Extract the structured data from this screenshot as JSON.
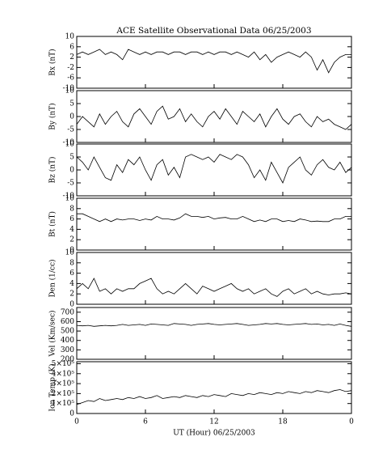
{
  "chart_data": [
    {
      "type": "line",
      "title": "ACE Satellite Observational Data   06/25/2003",
      "ylabel": "Bx (nT)",
      "x": [
        0,
        0.5,
        1,
        1.5,
        2,
        2.5,
        3,
        3.5,
        4,
        4.5,
        5,
        5.5,
        6,
        6.5,
        7,
        7.5,
        8,
        8.5,
        9,
        9.5,
        10,
        10.5,
        11,
        11.5,
        12,
        12.5,
        13,
        13.5,
        14,
        14.5,
        15,
        15.5,
        16,
        16.5,
        17,
        17.5,
        18,
        18.5,
        19,
        19.5,
        20,
        20.5,
        21,
        21.5,
        22,
        22.5,
        23,
        23.5,
        24
      ],
      "values": [
        3,
        4,
        3,
        4,
        5,
        3,
        4,
        3,
        1,
        5,
        4,
        3,
        4,
        3,
        4,
        4,
        3,
        4,
        4,
        3,
        4,
        4,
        3,
        4,
        3,
        4,
        4,
        3,
        4,
        3,
        2,
        4,
        1,
        3,
        0,
        2,
        3,
        4,
        3,
        2,
        4,
        2,
        -3,
        1,
        -4,
        0,
        2,
        3,
        3
      ],
      "xlim": [
        0,
        24
      ],
      "ylim": [
        -10,
        10
      ],
      "yticks": [
        -10,
        -6,
        -2,
        2,
        6,
        10
      ]
    },
    {
      "type": "line",
      "ylabel": "By (nT)",
      "x": [
        0,
        0.5,
        1,
        1.5,
        2,
        2.5,
        3,
        3.5,
        4,
        4.5,
        5,
        5.5,
        6,
        6.5,
        7,
        7.5,
        8,
        8.5,
        9,
        9.5,
        10,
        10.5,
        11,
        11.5,
        12,
        12.5,
        13,
        13.5,
        14,
        14.5,
        15,
        15.5,
        16,
        16.5,
        17,
        17.5,
        18,
        18.5,
        19,
        19.5,
        20,
        20.5,
        21,
        21.5,
        22,
        22.5,
        23,
        23.5,
        24
      ],
      "values": [
        -3,
        0,
        -2,
        -4,
        1,
        -3,
        0,
        2,
        -2,
        -4,
        1,
        3,
        0,
        -3,
        2,
        4,
        -1,
        0,
        3,
        -2,
        1,
        -2,
        -4,
        0,
        2,
        -1,
        3,
        0,
        -3,
        2,
        0,
        -2,
        1,
        -4,
        0,
        3,
        -1,
        -3,
        0,
        1,
        -2,
        -4,
        0,
        -2,
        -1,
        -3,
        -4,
        -5,
        -3
      ],
      "xlim": [
        0,
        24
      ],
      "ylim": [
        -10,
        10
      ],
      "yticks": [
        -10,
        -5,
        0,
        5,
        10
      ]
    },
    {
      "type": "line",
      "ylabel": "Bz (nT)",
      "x": [
        0,
        0.5,
        1,
        1.5,
        2,
        2.5,
        3,
        3.5,
        4,
        4.5,
        5,
        5.5,
        6,
        6.5,
        7,
        7.5,
        8,
        8.5,
        9,
        9.5,
        10,
        10.5,
        11,
        11.5,
        12,
        12.5,
        13,
        13.5,
        14,
        14.5,
        15,
        15.5,
        16,
        16.5,
        17,
        17.5,
        18,
        18.5,
        19,
        19.5,
        20,
        20.5,
        21,
        21.5,
        22,
        22.5,
        23,
        23.5,
        24
      ],
      "values": [
        5,
        3,
        0,
        5,
        1,
        -3,
        -4,
        2,
        -1,
        4,
        2,
        5,
        0,
        -4,
        2,
        4,
        -2,
        1,
        -3,
        5,
        6,
        5,
        4,
        5,
        3,
        6,
        5,
        4,
        6,
        5,
        2,
        -3,
        0,
        -4,
        3,
        -1,
        -5,
        1,
        3,
        5,
        0,
        -2,
        2,
        4,
        1,
        0,
        3,
        -1,
        1
      ],
      "xlim": [
        0,
        24
      ],
      "ylim": [
        -10,
        10
      ],
      "yticks": [
        -10,
        -5,
        0,
        5,
        10
      ]
    },
    {
      "type": "line",
      "ylabel": "Bt (nT)",
      "x": [
        0,
        0.5,
        1,
        1.5,
        2,
        2.5,
        3,
        3.5,
        4,
        4.5,
        5,
        5.5,
        6,
        6.5,
        7,
        7.5,
        8,
        8.5,
        9,
        9.5,
        10,
        10.5,
        11,
        11.5,
        12,
        12.5,
        13,
        13.5,
        14,
        14.5,
        15,
        15.5,
        16,
        16.5,
        17,
        17.5,
        18,
        18.5,
        19,
        19.5,
        20,
        20.5,
        21,
        21.5,
        22,
        22.5,
        23,
        23.5,
        24
      ],
      "values": [
        7,
        7,
        6.5,
        6,
        5.5,
        6,
        5.5,
        6,
        5.8,
        6,
        6,
        5.7,
        6,
        5.8,
        6.5,
        6,
        6,
        5.8,
        6.2,
        7,
        6.5,
        6.5,
        6.3,
        6.5,
        6,
        6.2,
        6.3,
        6,
        6,
        6.5,
        6,
        5.5,
        5.8,
        5.5,
        6,
        6,
        5.5,
        5.7,
        5.5,
        6,
        5.8,
        5.5,
        5.6,
        5.5,
        5.5,
        6,
        6,
        6.5,
        6.5
      ],
      "xlim": [
        0,
        24
      ],
      "ylim": [
        0,
        10
      ],
      "yticks": [
        0,
        2,
        4,
        6,
        8,
        10
      ]
    },
    {
      "type": "line",
      "ylabel": "Den (1/cc)",
      "x": [
        0,
        0.5,
        1,
        1.5,
        2,
        2.5,
        3,
        3.5,
        4,
        4.5,
        5,
        5.5,
        6,
        6.5,
        7,
        7.5,
        8,
        8.5,
        9,
        9.5,
        10,
        10.5,
        11,
        11.5,
        12,
        12.5,
        13,
        13.5,
        14,
        14.5,
        15,
        15.5,
        16,
        16.5,
        17,
        17.5,
        18,
        18.5,
        19,
        19.5,
        20,
        20.5,
        21,
        21.5,
        22,
        22.5,
        23,
        23.5,
        24
      ],
      "values": [
        3,
        4,
        3,
        5,
        2.5,
        3,
        2,
        3,
        2.5,
        3,
        3,
        4,
        4.5,
        5,
        3,
        2,
        2.5,
        2,
        3,
        4,
        3,
        2,
        3.5,
        3,
        2.5,
        3,
        3.5,
        4,
        3,
        2.5,
        3,
        2,
        2.5,
        3,
        2,
        1.5,
        2.5,
        3,
        2,
        2.5,
        3,
        2,
        2.5,
        2,
        1.8,
        2,
        2,
        2.2,
        2
      ],
      "xlim": [
        0,
        24
      ],
      "ylim": [
        0,
        10
      ],
      "yticks": [
        0,
        2,
        4,
        6,
        8,
        10
      ]
    },
    {
      "type": "line",
      "ylabel": "Vel (Km/sec)",
      "x": [
        0,
        0.5,
        1,
        1.5,
        2,
        2.5,
        3,
        3.5,
        4,
        4.5,
        5,
        5.5,
        6,
        6.5,
        7,
        7.5,
        8,
        8.5,
        9,
        9.5,
        10,
        10.5,
        11,
        11.5,
        12,
        12.5,
        13,
        13.5,
        14,
        14.5,
        15,
        15.5,
        16,
        16.5,
        17,
        17.5,
        18,
        18.5,
        19,
        19.5,
        20,
        20.5,
        21,
        21.5,
        22,
        22.5,
        23,
        23.5,
        24
      ],
      "values": [
        560,
        555,
        560,
        550,
        555,
        560,
        555,
        560,
        570,
        560,
        565,
        570,
        560,
        575,
        570,
        565,
        560,
        580,
        575,
        570,
        560,
        570,
        575,
        580,
        570,
        565,
        570,
        575,
        580,
        570,
        560,
        565,
        570,
        580,
        575,
        580,
        570,
        565,
        570,
        575,
        580,
        570,
        575,
        565,
        570,
        560,
        575,
        560,
        550
      ],
      "xlim": [
        0,
        24
      ],
      "ylim": [
        200,
        750
      ],
      "yticks": [
        200,
        300,
        400,
        500,
        600,
        700
      ]
    },
    {
      "type": "line",
      "ylabel": "Ion Temp (K)",
      "xlabel": "UT (Hour)   06/25/2003",
      "x": [
        0,
        0.5,
        1,
        1.5,
        2,
        2.5,
        3,
        3.5,
        4,
        4.5,
        5,
        5.5,
        6,
        6.5,
        7,
        7.5,
        8,
        8.5,
        9,
        9.5,
        10,
        10.5,
        11,
        11.5,
        12,
        12.5,
        13,
        13.5,
        14,
        14.5,
        15,
        15.5,
        16,
        16.5,
        17,
        17.5,
        18,
        18.5,
        19,
        19.5,
        20,
        20.5,
        21,
        21.5,
        22,
        22.5,
        23,
        23.5,
        24
      ],
      "values": [
        90000,
        110000,
        130000,
        120000,
        150000,
        130000,
        140000,
        150000,
        140000,
        160000,
        150000,
        170000,
        150000,
        160000,
        180000,
        150000,
        160000,
        170000,
        160000,
        180000,
        170000,
        160000,
        180000,
        170000,
        190000,
        180000,
        170000,
        200000,
        190000,
        180000,
        200000,
        190000,
        210000,
        200000,
        190000,
        210000,
        200000,
        220000,
        210000,
        200000,
        220000,
        210000,
        230000,
        220000,
        210000,
        230000,
        240000,
        220000,
        230000
      ],
      "xlim": [
        0,
        24
      ],
      "ylim": [
        0,
        520000
      ],
      "yticks": [
        0,
        {
          "value": 100000,
          "label": "1×10⁵"
        },
        {
          "value": 200000,
          "label": "2×10⁵"
        },
        {
          "value": 300000,
          "label": "3×10⁵"
        },
        {
          "value": 400000,
          "label": "4×10⁵"
        },
        {
          "value": 500000,
          "label": "5×10⁵"
        }
      ],
      "xticks": [
        0,
        6,
        12,
        18,
        {
          "value": 24,
          "label": "0"
        }
      ]
    }
  ]
}
